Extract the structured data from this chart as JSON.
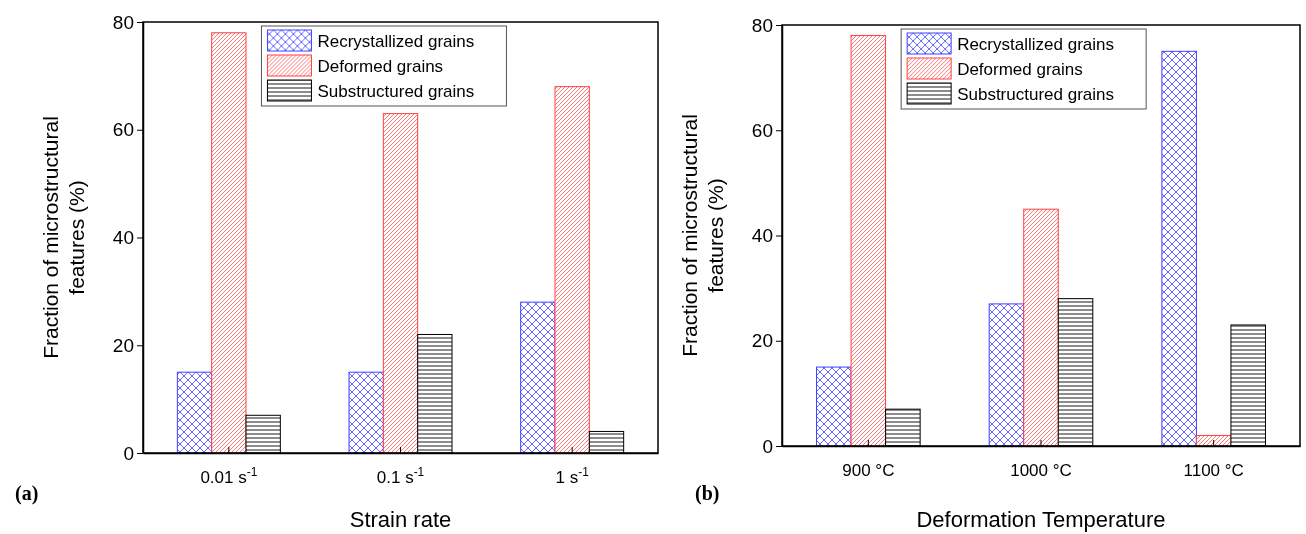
{
  "chart_data": [
    {
      "type": "bar",
      "xlabel": "Strain rate",
      "ylabel": "Fraction of microstructural\nfeatures (%)",
      "categories": [
        "0.01 s$^{-1}$",
        "0.1 s$^{-1}$",
        "1 s$^{-1}$"
      ],
      "series": [
        {
          "name": "Recrystallized grains",
          "color": "#4040ff",
          "values": [
            15,
            15,
            28
          ]
        },
        {
          "name": "Deformed grains",
          "color": "#ff4040",
          "values": [
            78,
            63,
            68
          ]
        },
        {
          "name": "Substructured grains",
          "color": "#000000",
          "values": [
            7,
            22,
            4
          ]
        }
      ],
      "ylim": [
        0,
        80
      ],
      "yticks": [
        0,
        20,
        40,
        60,
        80
      ],
      "legend": "top",
      "annotations": [
        "(a)"
      ]
    },
    {
      "type": "bar",
      "xlabel": "Deformation Temperature",
      "ylabel": "Fraction of microstructural\nfeatures (%)",
      "categories": [
        "900 °C",
        "1000 °C",
        "1100 °C"
      ],
      "series": [
        {
          "name": "Recrystallized grains",
          "color": "#4040ff",
          "values": [
            15,
            27,
            75
          ]
        },
        {
          "name": "Deformed grains",
          "color": "#ff4040",
          "values": [
            78,
            45,
            2
          ]
        },
        {
          "name": "Substructured grains",
          "color": "#000000",
          "values": [
            7,
            28,
            23
          ]
        }
      ],
      "ylim": [
        0,
        80
      ],
      "yticks": [
        0,
        20,
        40,
        60,
        80
      ],
      "legend": "top",
      "annotations": [
        "(b)"
      ]
    }
  ]
}
